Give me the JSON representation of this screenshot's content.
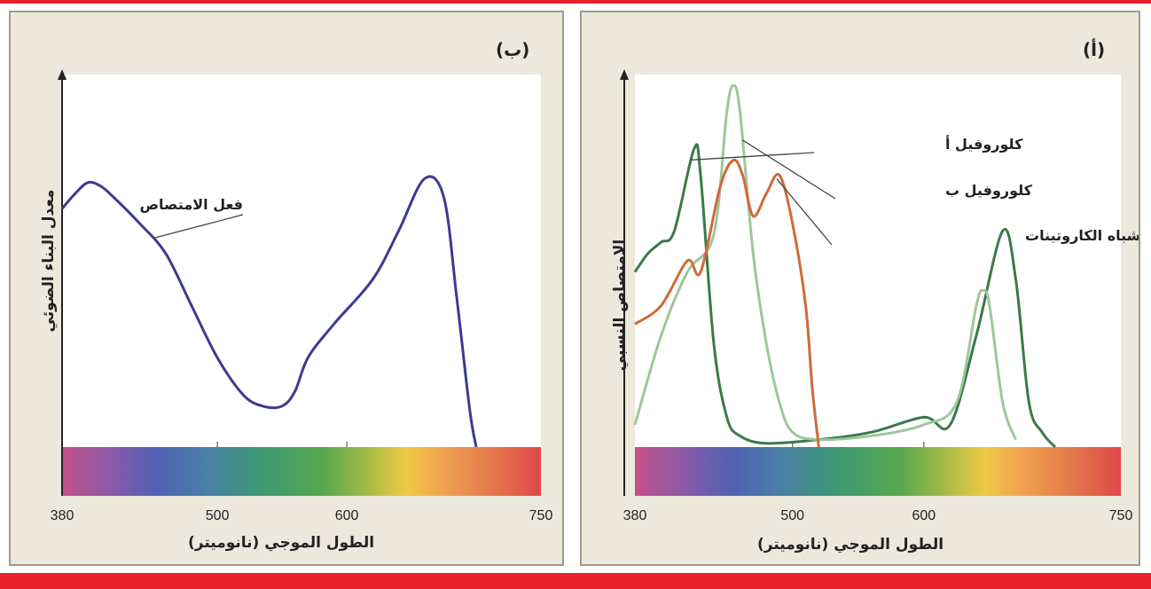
{
  "chart_data": [
    {
      "panel": "b",
      "type": "line",
      "panel_label": "(ب)",
      "ylabel": "معدل البناء الضوئي",
      "xlabel": "الطول الموجي (نانوميتر)",
      "x_ticks": [
        380,
        500,
        600,
        750
      ],
      "xlim": [
        380,
        750
      ],
      "ylim": [
        0,
        1
      ],
      "spectrum_bar": true,
      "series": [
        {
          "name": "فعل الامتصاص",
          "color": "#3d3a92",
          "points": [
            [
              380,
              0.64
            ],
            [
              390,
              0.68
            ],
            [
              400,
              0.71
            ],
            [
              410,
              0.7
            ],
            [
              420,
              0.67
            ],
            [
              440,
              0.6
            ],
            [
              460,
              0.52
            ],
            [
              480,
              0.38
            ],
            [
              500,
              0.24
            ],
            [
              520,
              0.14
            ],
            [
              535,
              0.11
            ],
            [
              550,
              0.11
            ],
            [
              560,
              0.15
            ],
            [
              570,
              0.24
            ],
            [
              590,
              0.33
            ],
            [
              620,
              0.45
            ],
            [
              640,
              0.58
            ],
            [
              660,
              0.72
            ],
            [
              675,
              0.67
            ],
            [
              685,
              0.4
            ],
            [
              695,
              0.1
            ],
            [
              700,
              0.0
            ]
          ]
        }
      ]
    },
    {
      "panel": "a",
      "type": "line",
      "panel_label": "(أ)",
      "ylabel": "الامتصاص النسبي",
      "xlabel": "الطول الموجي (نانوميتر)",
      "x_ticks": [
        380,
        500,
        600,
        750
      ],
      "xlim": [
        380,
        750
      ],
      "ylim": [
        0,
        1
      ],
      "spectrum_bar": true,
      "series": [
        {
          "name": "كلوروفيل أ",
          "color": "#3a7a4a",
          "points": [
            [
              380,
              0.47
            ],
            [
              390,
              0.52
            ],
            [
              400,
              0.55
            ],
            [
              410,
              0.58
            ],
            [
              425,
              0.8
            ],
            [
              430,
              0.73
            ],
            [
              440,
              0.28
            ],
            [
              450,
              0.08
            ],
            [
              460,
              0.03
            ],
            [
              480,
              0.01
            ],
            [
              520,
              0.02
            ],
            [
              560,
              0.04
            ],
            [
              600,
              0.08
            ],
            [
              620,
              0.06
            ],
            [
              640,
              0.3
            ],
            [
              660,
              0.58
            ],
            [
              670,
              0.45
            ],
            [
              680,
              0.12
            ],
            [
              690,
              0.04
            ],
            [
              700,
              0.0
            ]
          ]
        },
        {
          "name": "كلوروفيل ب",
          "color": "#9dc79b",
          "points": [
            [
              380,
              0.06
            ],
            [
              400,
              0.3
            ],
            [
              420,
              0.47
            ],
            [
              440,
              0.57
            ],
            [
              450,
              0.9
            ],
            [
              455,
              0.97
            ],
            [
              460,
              0.9
            ],
            [
              470,
              0.52
            ],
            [
              480,
              0.28
            ],
            [
              490,
              0.12
            ],
            [
              500,
              0.04
            ],
            [
              520,
              0.02
            ],
            [
              560,
              0.03
            ],
            [
              600,
              0.06
            ],
            [
              625,
              0.12
            ],
            [
              640,
              0.38
            ],
            [
              645,
              0.42
            ],
            [
              650,
              0.38
            ],
            [
              660,
              0.12
            ],
            [
              670,
              0.02
            ]
          ]
        },
        {
          "name": "اشباه الكاروتينات",
          "color": "#d06a3a",
          "points": [
            [
              380,
              0.33
            ],
            [
              400,
              0.38
            ],
            [
              420,
              0.5
            ],
            [
              430,
              0.47
            ],
            [
              445,
              0.7
            ],
            [
              455,
              0.77
            ],
            [
              462,
              0.73
            ],
            [
              470,
              0.62
            ],
            [
              480,
              0.68
            ],
            [
              490,
              0.73
            ],
            [
              500,
              0.6
            ],
            [
              510,
              0.38
            ],
            [
              515,
              0.16
            ],
            [
              520,
              0.0
            ]
          ]
        }
      ]
    }
  ]
}
